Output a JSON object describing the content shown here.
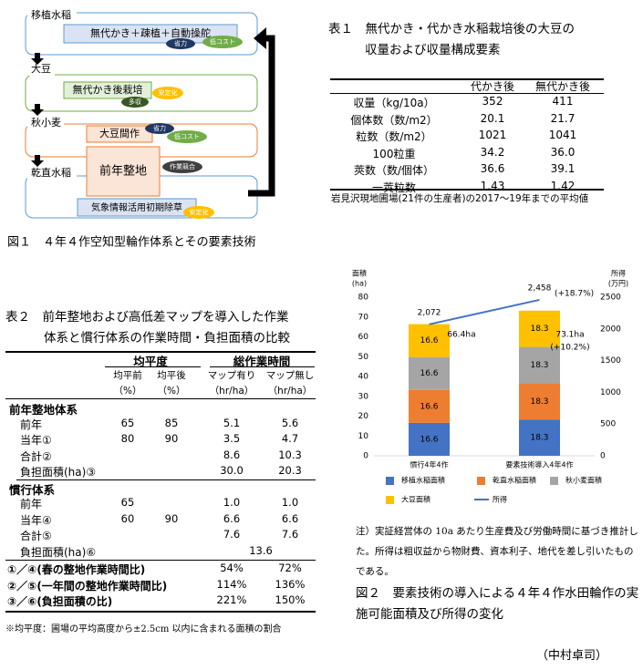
{
  "figure1": {
    "stages": [
      "移植水稲",
      "大豆",
      "秋小麦",
      "乾直水稲"
    ],
    "techniques": [
      "無代かき＋疎植＋自動操舵",
      "無代かき後栽培",
      "大豆間作",
      "前年整地",
      "気象情報活用初期除草"
    ],
    "badges": [
      "省力",
      "低コスト",
      "多収",
      "安定化",
      "省力",
      "低コスト",
      "作業競合",
      "安定化"
    ],
    "caption": "図１　４年４作空知型輪作体系とその要素技術"
  },
  "table1": {
    "title": [
      "表１　無代かき・代かき水稲栽培後の大豆の",
      "収量および収量構成要素"
    ],
    "columns": [
      "代かき後",
      "無代かき後"
    ],
    "rows": [
      [
        "収量（kg/10a）",
        "352",
        "411"
      ],
      [
        "個体数（数/m2）",
        "20.1",
        "21.7"
      ],
      [
        "粒数（数/m2）",
        "1021",
        "1041"
      ],
      [
        "100粒重",
        "34.2",
        "36.0"
      ],
      [
        "莢数（数/個体）",
        "36.6",
        "39.1"
      ],
      [
        "一莢粒数",
        "1.43",
        "1.42"
      ]
    ],
    "note": "岩見沢現地圃場(21件の生産者)の2017～19年までの平均値"
  },
  "table2": {
    "title": [
      "表２　前年整地および高低差マップを導入した作業",
      "体系と慣行体系の作業時間・負担面積の比較"
    ],
    "groups": [
      "均平度",
      "総作業時間"
    ],
    "columns": [
      [
        "均平前",
        "（%）"
      ],
      [
        "均平後",
        "（%）"
      ],
      [
        "マップ有り",
        "（hr/ha）"
      ],
      [
        "マップ無し",
        "（hr/ha）"
      ]
    ],
    "sections": [
      {
        "name": "前年整地体系",
        "rows": [
          {
            "label": "前年",
            "before": "65",
            "after": "85",
            "map": "5.1",
            "nomap": "5.6"
          },
          {
            "label": "当年①",
            "before": "80",
            "after": "90",
            "map": "3.5",
            "nomap": "4.7"
          },
          {
            "label": "合計②",
            "map": "8.6",
            "nomap": "10.3"
          },
          {
            "label": "負担面積(ha)③",
            "map": "30.0",
            "nomap": "20.3"
          }
        ]
      },
      {
        "name": "慣行体系",
        "rows": [
          {
            "label": "前年",
            "before": "65",
            "map": "1.0",
            "nomap": "1.0"
          },
          {
            "label": "当年④",
            "before": "60",
            "after": "90",
            "map": "6.6",
            "nomap": "6.6"
          },
          {
            "label": "合計⑤",
            "map": "7.6",
            "nomap": "7.6"
          },
          {
            "label": "負担面積(ha)⑥",
            "both": "13.6"
          }
        ]
      }
    ],
    "ratios": [
      {
        "label": "①／④(春の整地作業時間比)",
        "map": "54%",
        "nomap": "72%"
      },
      {
        "label": "②／⑤(一年間の整地作業時間比)",
        "map": "114%",
        "nomap": "136%"
      },
      {
        "label": "③／⑥(負担面積の比)",
        "map": "221%",
        "nomap": "150%"
      }
    ],
    "note": "※均平度：圃場の平均高度から±2.5cm 以内に含まれる面積の割合"
  },
  "chart_data": {
    "type": "stacked-bar-line",
    "categories": [
      "慣行4年4作",
      "要素技術導入4年4作"
    ],
    "series": [
      {
        "name": "移植水稲面積",
        "color": "#4472c4",
        "values": [
          16.6,
          18.3
        ]
      },
      {
        "name": "乾直水稲面積",
        "color": "#ed7d31",
        "values": [
          16.6,
          18.3
        ]
      },
      {
        "name": "秋小麦面積",
        "color": "#a5a5a5",
        "values": [
          16.6,
          18.3
        ]
      },
      {
        "name": "大豆面積",
        "color": "#ffc000",
        "values": [
          16.6,
          18.3
        ]
      },
      {
        "name": "所得",
        "color": "#4472c4",
        "type": "line",
        "axis": "y2",
        "values": [
          2072,
          2458
        ],
        "value_labels": [
          "2,072",
          "2,458"
        ]
      }
    ],
    "ylabel": [
      "面積",
      "(ha)"
    ],
    "y2label": [
      "所得",
      "(万円)"
    ],
    "ylim": [
      0,
      80
    ],
    "yticks": [
      0,
      10,
      20,
      30,
      40,
      50,
      60,
      70,
      80
    ],
    "y2lim": [
      0,
      2500
    ],
    "y2ticks": [
      0,
      500,
      1000,
      1500,
      2000,
      2500
    ],
    "annotations": [
      "66.4ha",
      "73.1ha",
      "(+10.2%)",
      "(+18.7%)"
    ],
    "note": "注）実証経営体の 10a あたり生産費及び労働時間に基づき推計した。所得は粗収益から物財費、資本利子、地代を差し引いたものである。",
    "caption": "図２　要素技術の導入による４年４作水田輪作の実施可能面積及び所得の変化",
    "author": "（中村卓司）"
  }
}
